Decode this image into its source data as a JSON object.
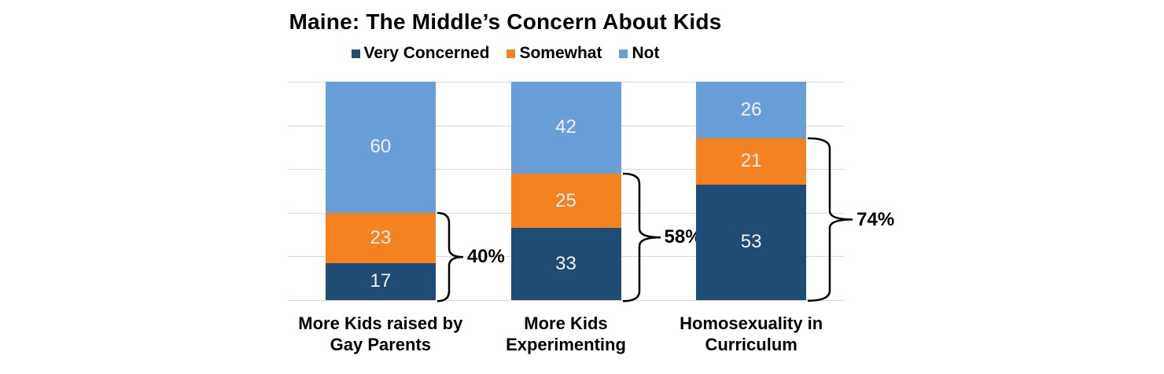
{
  "chart_data": {
    "type": "bar",
    "stacked": true,
    "title": "Maine: The Middle’s Concern About Kids",
    "categories": [
      [
        "More Kids raised by",
        "Gay Parents"
      ],
      [
        "More Kids",
        "Experimenting"
      ],
      [
        "Homosexuality in",
        "Curriculum"
      ]
    ],
    "series": [
      {
        "name": "Very Concerned",
        "color": "#1E4C74",
        "values": [
          17,
          33,
          53
        ]
      },
      {
        "name": "Somewhat",
        "color": "#F58220",
        "values": [
          23,
          25,
          21
        ]
      },
      {
        "name": "Not",
        "color": "#699FD8",
        "values": [
          60,
          42,
          26
        ]
      }
    ],
    "annotations": [
      {
        "category": "More Kids raised by Gay Parents",
        "label": "40%",
        "total": 40,
        "spans": [
          "Very Concerned",
          "Somewhat"
        ]
      },
      {
        "category": "More Kids Experimenting",
        "label": "58%",
        "total": 58,
        "spans": [
          "Very Concerned",
          "Somewhat"
        ]
      },
      {
        "category": "Homosexuality in Curriculum",
        "label": "74%",
        "total": 74,
        "spans": [
          "Very Concerned",
          "Somewhat"
        ]
      }
    ],
    "ylim": [
      0,
      100
    ],
    "grid_interval": 20,
    "grid": true,
    "legend_position": "top",
    "gridline_color": "#D9D9D9",
    "value_label_color": "#F2F2F2",
    "bracket_color": "#000000"
  }
}
